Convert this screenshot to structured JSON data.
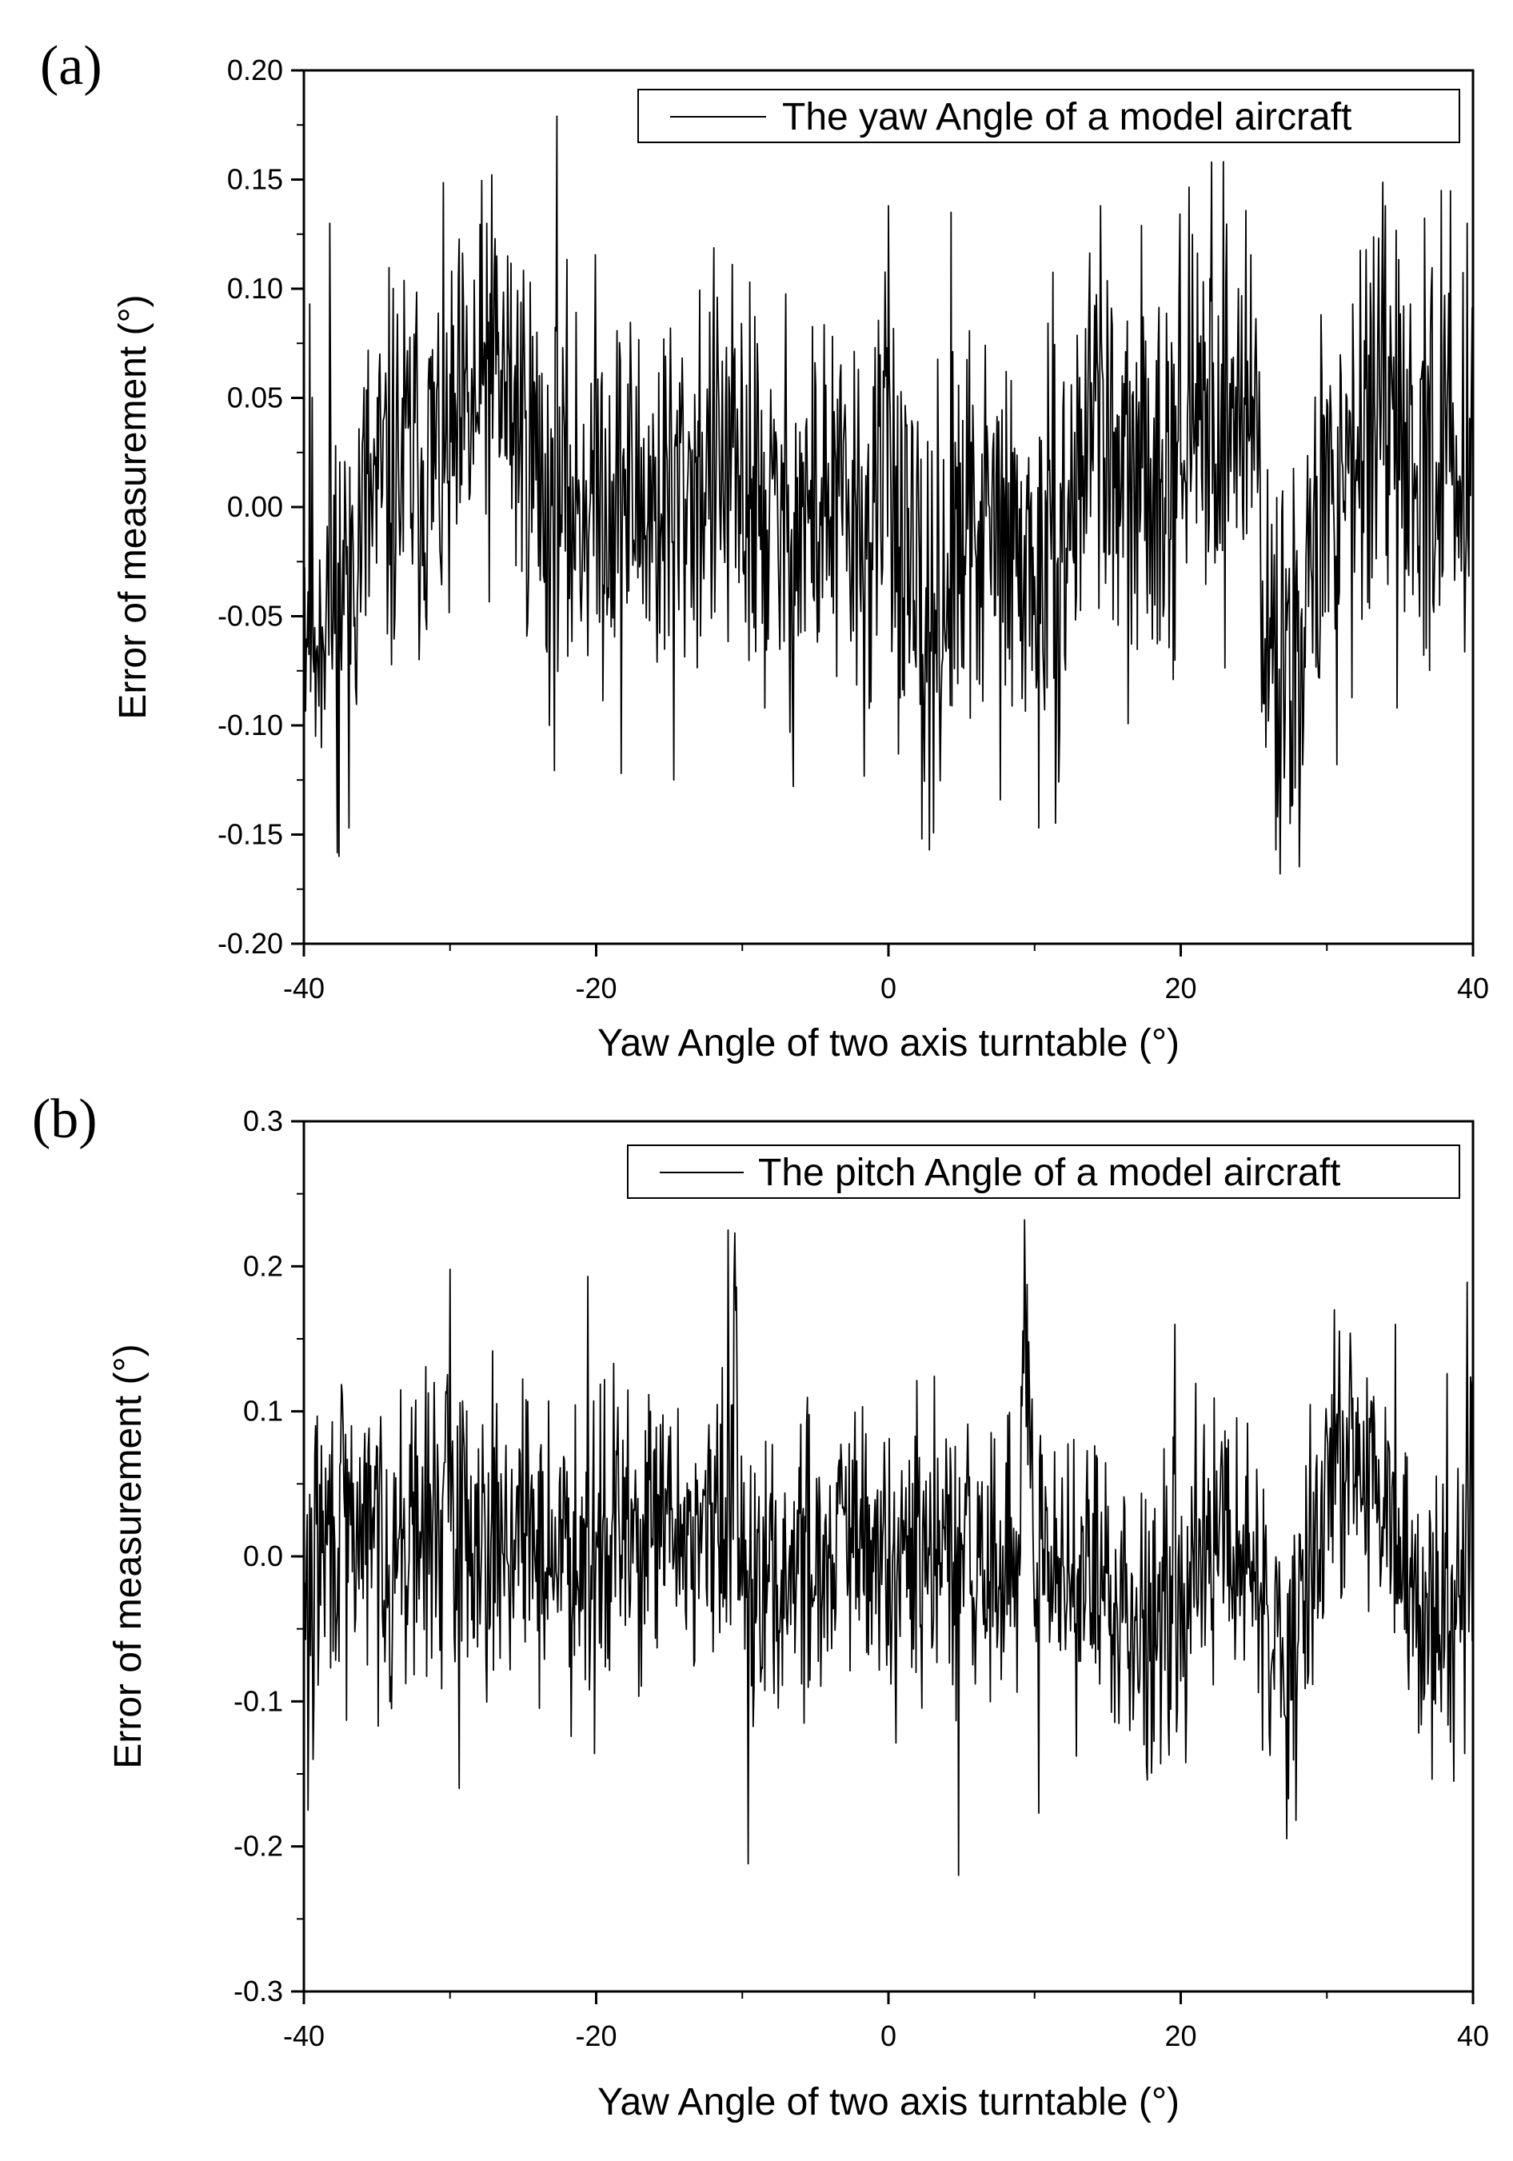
{
  "chart_data": [
    {
      "panel_label": "(a)",
      "type": "line",
      "series": [
        {
          "name": "The yaw Angle of a model aircraft",
          "color": "#000000",
          "seed": 11,
          "noise": 0.045,
          "baseline": [
            [
              -40,
              -0.04
            ],
            [
              -38,
              -0.04
            ],
            [
              -36,
              -0.005
            ],
            [
              -33,
              0.02
            ],
            [
              -30,
              0.02
            ],
            [
              -27,
              0.06
            ],
            [
              -25,
              0.04
            ],
            [
              -23,
              -0.005
            ],
            [
              -20,
              0.01
            ],
            [
              -16,
              0.0
            ],
            [
              -12,
              0.02
            ],
            [
              -8,
              -0.01
            ],
            [
              -4,
              0.0
            ],
            [
              -1,
              -0.02
            ],
            [
              0,
              0.05
            ],
            [
              1,
              -0.04
            ],
            [
              3,
              -0.05
            ],
            [
              6,
              -0.01
            ],
            [
              10,
              -0.03
            ],
            [
              12,
              -0.02
            ],
            [
              14,
              0.05
            ],
            [
              16,
              0.0
            ],
            [
              19,
              0.03
            ],
            [
              22,
              0.04
            ],
            [
              25,
              0.05
            ],
            [
              26,
              -0.07
            ],
            [
              28,
              -0.06
            ],
            [
              30,
              0.0
            ],
            [
              32,
              0.04
            ],
            [
              36,
              0.02
            ],
            [
              40,
              0.03
            ]
          ],
          "spikes": [
            [
              -39.6,
              0.093
            ],
            [
              -39.2,
              -0.105
            ],
            [
              -38.2,
              0.13
            ],
            [
              -37.6,
              -0.16
            ],
            [
              -36.9,
              -0.147
            ],
            [
              -27.5,
              0.13
            ],
            [
              -26.8,
              0.115
            ],
            [
              -22.7,
              0.179
            ],
            [
              -23.2,
              -0.1
            ],
            [
              -18.3,
              -0.122
            ],
            [
              -14.7,
              -0.125
            ],
            [
              -9.5,
              0.103
            ],
            [
              -6.5,
              -0.128
            ],
            [
              0.0,
              0.138
            ],
            [
              2.3,
              -0.152
            ],
            [
              2.8,
              -0.157
            ],
            [
              4.3,
              0.135
            ],
            [
              10.3,
              -0.147
            ],
            [
              14.5,
              0.138
            ],
            [
              22.1,
              0.158
            ],
            [
              25.8,
              -0.11
            ],
            [
              26.5,
              -0.157
            ],
            [
              26.8,
              -0.168
            ],
            [
              27.5,
              -0.145
            ],
            [
              30.7,
              -0.118
            ],
            [
              34.8,
              -0.092
            ],
            [
              37.8,
              0.145
            ],
            [
              39.6,
              0.13
            ]
          ]
        }
      ],
      "xlabel": "Yaw Angle of two axis turntable (°)",
      "ylabel": "Error of measurement (°)",
      "xlim": [
        -40,
        40
      ],
      "ylim": [
        -0.2,
        0.2
      ],
      "xticks": [
        -40,
        -20,
        0,
        20,
        40
      ],
      "xtick_labels": [
        "-40",
        "-20",
        "0",
        "20",
        "40"
      ],
      "yticks": [
        -0.2,
        -0.15,
        -0.1,
        -0.05,
        0.0,
        0.05,
        0.1,
        0.15,
        0.2
      ],
      "ytick_labels": [
        "-0.20",
        "-0.15",
        "-0.10",
        "-0.05",
        "0.00",
        "0.05",
        "0.10",
        "0.15",
        "0.20"
      ],
      "yminor_step": 0.025,
      "xminor_step": 10,
      "grid": false,
      "legend_position": "top-right"
    },
    {
      "panel_label": "(b)",
      "type": "line",
      "series": [
        {
          "name": "The pitch Angle of a model aircraft",
          "color": "#000000",
          "seed": 29,
          "noise": 0.05,
          "baseline": [
            [
              -40,
              -0.05
            ],
            [
              -39.5,
              0.0
            ],
            [
              -37,
              0.02
            ],
            [
              -33,
              0.01
            ],
            [
              -30,
              0.03
            ],
            [
              -27,
              0.02
            ],
            [
              -25,
              0.015
            ],
            [
              -22,
              0.0
            ],
            [
              -20,
              0.02
            ],
            [
              -17,
              0.01
            ],
            [
              -14,
              0.02
            ],
            [
              -11,
              0.01
            ],
            [
              -10.5,
              0.15
            ],
            [
              -10,
              0.0
            ],
            [
              -9,
              -0.03
            ],
            [
              -6,
              0.0
            ],
            [
              -3,
              0.01
            ],
            [
              0,
              -0.01
            ],
            [
              3,
              0.0
            ],
            [
              6,
              -0.01
            ],
            [
              9,
              0.0
            ],
            [
              9.5,
              0.15
            ],
            [
              10,
              -0.02
            ],
            [
              12,
              0.0
            ],
            [
              15,
              -0.03
            ],
            [
              18,
              -0.04
            ],
            [
              21,
              0.0
            ],
            [
              24,
              0.01
            ],
            [
              25,
              0.0
            ],
            [
              26,
              -0.07
            ],
            [
              28,
              -0.05
            ],
            [
              30,
              0.05
            ],
            [
              32,
              0.07
            ],
            [
              34,
              0.02
            ],
            [
              36,
              -0.03
            ],
            [
              38,
              -0.05
            ],
            [
              40,
              0.05
            ]
          ],
          "spikes": [
            [
              -39.7,
              -0.175
            ],
            [
              -39.4,
              -0.14
            ],
            [
              -37.1,
              -0.113
            ],
            [
              -34.0,
              -0.105
            ],
            [
              -30.0,
              0.198
            ],
            [
              -29.4,
              -0.16
            ],
            [
              -29.3,
              0.106
            ],
            [
              -20.6,
              0.193
            ],
            [
              -20.1,
              -0.136
            ],
            [
              -11.0,
              0.225
            ],
            [
              -10.6,
              0.187
            ],
            [
              -9.6,
              -0.212
            ],
            [
              4.8,
              -0.22
            ],
            [
              9.3,
              0.232
            ],
            [
              10.3,
              -0.177
            ],
            [
              19.6,
              0.16
            ],
            [
              27.9,
              -0.182
            ],
            [
              30.5,
              0.17
            ],
            [
              34.7,
              0.16
            ],
            [
              38.2,
              0.126
            ],
            [
              39.6,
              0.189
            ],
            [
              39.4,
              -0.136
            ]
          ]
        }
      ],
      "xlabel": "Yaw Angle of two axis turntable (°)",
      "ylabel": "Error of measurement (°)",
      "xlim": [
        -40,
        40
      ],
      "ylim": [
        -0.3,
        0.3
      ],
      "xticks": [
        -40,
        -20,
        0,
        20,
        40
      ],
      "xtick_labels": [
        "-40",
        "-20",
        "0",
        "20",
        "40"
      ],
      "yticks": [
        -0.3,
        -0.2,
        -0.1,
        0.0,
        0.1,
        0.2,
        0.3
      ],
      "ytick_labels": [
        "-0.3",
        "-0.2",
        "-0.1",
        "0.0",
        "0.1",
        "0.2",
        "0.3"
      ],
      "yminor_step": 0.05,
      "xminor_step": 10,
      "grid": false,
      "legend_position": "top-right"
    }
  ]
}
